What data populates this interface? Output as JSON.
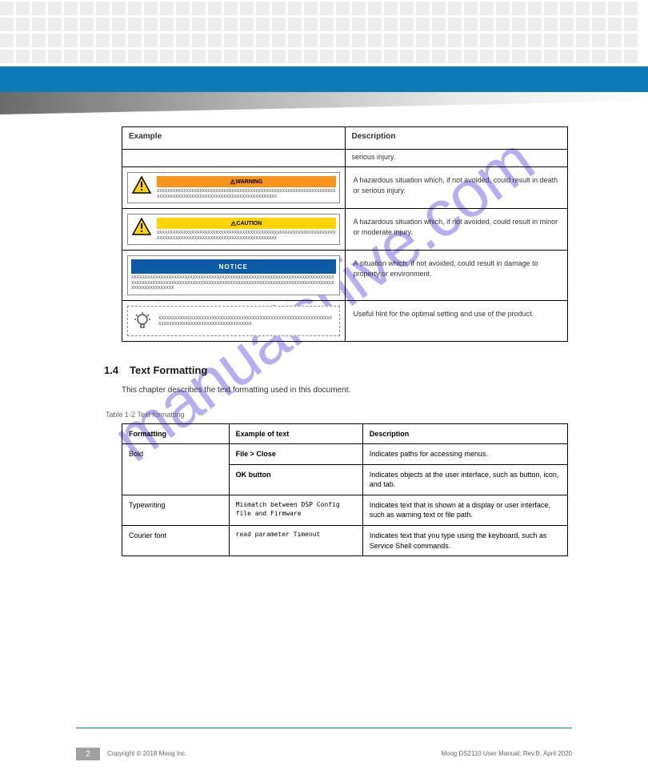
{
  "watermark": "manualshive.com",
  "colors": {
    "blue_bar": "#0d7bb8",
    "gradient_dark": "#6a6a6a",
    "gradient_light": "#e8e8e8",
    "warning": "#f7941e",
    "caution": "#ffd400",
    "notice": "#0d5aa7",
    "square": "#ededed",
    "watermark": "#7b6de8"
  },
  "table1": {
    "header_left": "Example",
    "header_right": "Description",
    "sub_left": "",
    "sub_right": "serious injury.",
    "row1": {
      "bar_label": "WARNING",
      "icon": "warning-triangle",
      "x_line": "XXXXXXXXXXXXXXXXXXXXXXXXXXXXXXXXXXXXXXXXXXXXXXXXXXXXXXXXXXXXXXXXXXXXXXXXXXXXXXXXXXXXXXXXXXXXXXXXXXXXXXXXXXXXXXXX",
      "desc": "A hazardous situation which, if not avoided, could result in death or serious injury."
    },
    "row2": {
      "bar_label": "CAUTION",
      "icon": "warning-triangle",
      "x_line": "XXXXXXXXXXXXXXXXXXXXXXXXXXXXXXXXXXXXXXXXXXXXXXXXXXXXXXXXXXXXXXXXXXXXXXXXXXXXXXXXXXXXXXXXXXXXXXXXXXXXXXXXXXXXXXXX",
      "desc": "A hazardous situation which, if not avoided, could result in minor or moderate injury."
    },
    "row3": {
      "bar_label": "NOTICE",
      "x_line": "XXXXXXXXXXXXXXXXXXXXXXXXXXXXXXXXXXXXXXXXXXXXXXXXXXXXXXXXXXXXXXXXXXXXXXXXXXXXXXXXXXXXXXXXXXXXXXXXXXXXXXXXXXXXXXXXXXXXXXXXXXXXXXXXXXXXXXXXXXXXXXXXXXXXXXXXXXXXXXXXXXXXXXXX",
      "desc": "A situation which, if not avoided, could result in damage to property or environment."
    },
    "row4": {
      "icon": "lightbulb",
      "x_line": "XXXXXXXXXXXXXXXXXXXXXXXXXXXXXXXXXXXXXXXXXXXXXXXXXXXXXXXXXXXXXXXXXXXXXXXXXXXXXXXXXXXXXXXXXXXXXXXXXXXX",
      "desc": "Useful hint for the optimal setting and use of the product."
    }
  },
  "section": {
    "number": "1.4",
    "title": "Text Formatting",
    "body": "This chapter describes the text formatting used in this document.",
    "table_caption": "Table 1-2 Text formatting"
  },
  "table2": {
    "headers": [
      "Formatting",
      "Example of text",
      "Description"
    ],
    "rows": [
      {
        "c1": "Bold",
        "c2_a": "File > Close",
        "c2_b": "OK button",
        "c3_a": "Indicates paths for accessing menus.",
        "c3_b": "Indicates objects at the user interface, such as button, icon, and tab."
      },
      {
        "c1": "Typewriting",
        "c2": "Mismatch between DSP Config file and Firmware",
        "c3": "Indicates text that is shown at a display or user interface, such as warning text or file path."
      },
      {
        "c1": "Courier font",
        "c2": "read parameter Timeout",
        "c3": "Indicates text that you type using the keyboard, such as Service Shell commands."
      }
    ]
  },
  "footer": {
    "page_number": "2",
    "copyright": "Copyright © 2018 Moog Inc.",
    "doc_ref": "Moog DS2110 User Manual; Rev.B, April 2020"
  }
}
